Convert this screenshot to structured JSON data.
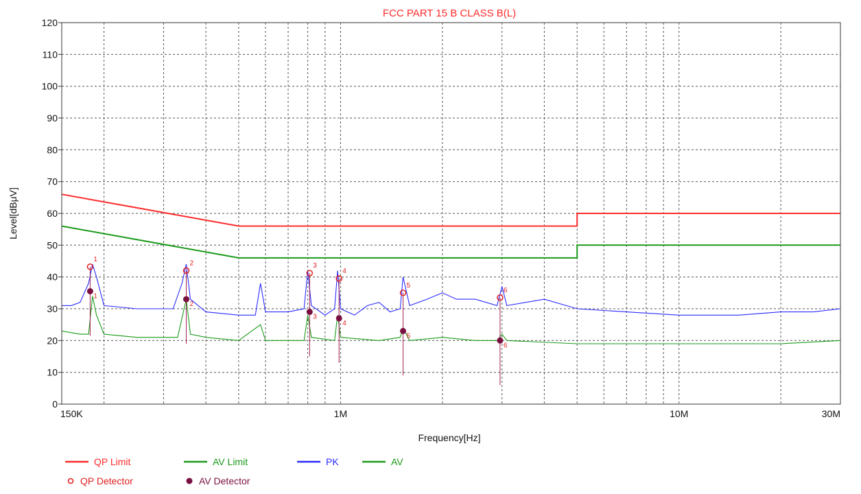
{
  "chart_data": {
    "type": "line",
    "title": "FCC PART 15 B CLASS B(L)",
    "xlabel": "Frequency[Hz]",
    "ylabel": "Level[dBμV]",
    "x_scale": "log",
    "xlim": [
      150000,
      30000000
    ],
    "ylim": [
      0,
      120
    ],
    "y_ticks": [
      0,
      10,
      20,
      30,
      40,
      50,
      60,
      70,
      80,
      90,
      100,
      110,
      120
    ],
    "x_tick_labels": [
      {
        "value": 150000,
        "label": "150K"
      },
      {
        "value": 1000000,
        "label": "1M"
      },
      {
        "value": 10000000,
        "label": "10M"
      },
      {
        "value": 30000000,
        "label": "30M"
      }
    ],
    "x_gridlines": [
      200000,
      300000,
      400000,
      500000,
      600000,
      700000,
      800000,
      900000,
      1000000,
      2000000,
      3000000,
      4000000,
      5000000,
      6000000,
      7000000,
      8000000,
      9000000,
      10000000,
      20000000
    ],
    "grid": true,
    "legend_placement": "bottom-left",
    "series": [
      {
        "name": "QP Limit",
        "color": "#ff2a2a",
        "x": [
          150000,
          500000,
          500000,
          5000000,
          5000000,
          30000000
        ],
        "y": [
          66,
          56,
          56,
          56,
          60,
          60
        ]
      },
      {
        "name": "AV Limit",
        "color": "#1a9a1a",
        "x": [
          150000,
          500000,
          500000,
          5000000,
          5000000,
          30000000
        ],
        "y": [
          56,
          46,
          46,
          46,
          50,
          50
        ]
      },
      {
        "name": "PK",
        "color": "#2a2aff",
        "x": [
          150000,
          160000,
          170000,
          180000,
          185000,
          190000,
          200000,
          250000,
          320000,
          340000,
          350000,
          360000,
          400000,
          500000,
          560000,
          580000,
          600000,
          700000,
          780000,
          800000,
          820000,
          900000,
          960000,
          980000,
          1000000,
          1100000,
          1200000,
          1300000,
          1400000,
          1500000,
          1530000,
          1600000,
          1800000,
          2000000,
          2200000,
          2500000,
          2900000,
          3000000,
          3100000,
          4000000,
          5000000,
          7000000,
          10000000,
          15000000,
          20000000,
          25000000,
          30000000
        ],
        "y": [
          31,
          31,
          32,
          38,
          44,
          40,
          31,
          30,
          30,
          38,
          44,
          33,
          29,
          28,
          28,
          38,
          29,
          29,
          30,
          42,
          31,
          28,
          30,
          42,
          30,
          28,
          31,
          32,
          29,
          30,
          40,
          31,
          33,
          35,
          33,
          33,
          31,
          37,
          31,
          33,
          30,
          29,
          28,
          28,
          29,
          29,
          30
        ]
      },
      {
        "name": "AV",
        "color": "#1a9a1a",
        "x": [
          150000,
          170000,
          180000,
          185000,
          190000,
          200000,
          250000,
          330000,
          350000,
          360000,
          400000,
          500000,
          580000,
          600000,
          700000,
          780000,
          800000,
          820000,
          960000,
          980000,
          1000000,
          1300000,
          1500000,
          1530000,
          1600000,
          2000000,
          2500000,
          2900000,
          3000000,
          3100000,
          5000000,
          10000000,
          20000000,
          30000000
        ],
        "y": [
          23,
          22,
          22,
          34,
          28,
          22,
          21,
          21,
          33,
          22,
          21,
          20,
          25,
          20,
          20,
          20,
          28,
          21,
          20,
          28,
          21,
          20,
          21,
          24,
          20,
          21,
          20,
          20,
          22,
          20,
          19,
          19,
          19,
          20
        ]
      }
    ],
    "markers": [
      {
        "id": "1",
        "freq": 182000,
        "qp": 43.2,
        "av": 35.5
      },
      {
        "id": "2",
        "freq": 350000,
        "qp": 42.0,
        "av": 33.0
      },
      {
        "id": "3",
        "freq": 810000,
        "qp": 41.2,
        "av": 29.0
      },
      {
        "id": "4",
        "freq": 990000,
        "qp": 39.5,
        "av": 27.0
      },
      {
        "id": "5",
        "freq": 1530000,
        "qp": 35.0,
        "av": 23.0
      },
      {
        "id": "6",
        "freq": 2960000,
        "qp": 33.5,
        "av": 20.0
      }
    ],
    "legend": [
      {
        "key": "qp_limit",
        "label": "QP Limit",
        "symbol": "line",
        "color": "#ff2a2a"
      },
      {
        "key": "av_limit",
        "label": "AV Limit",
        "symbol": "line",
        "color": "#1a9a1a"
      },
      {
        "key": "pk",
        "label": "PK",
        "symbol": "line",
        "color": "#2a2aff"
      },
      {
        "key": "av",
        "label": "AV",
        "symbol": "line",
        "color": "#1a9a1a"
      },
      {
        "key": "qp_detector",
        "label": "QP Detector",
        "symbol": "circle",
        "color": "#e02020"
      },
      {
        "key": "av_detector",
        "label": "AV Detector",
        "symbol": "star",
        "color": "#7a1040"
      }
    ]
  }
}
